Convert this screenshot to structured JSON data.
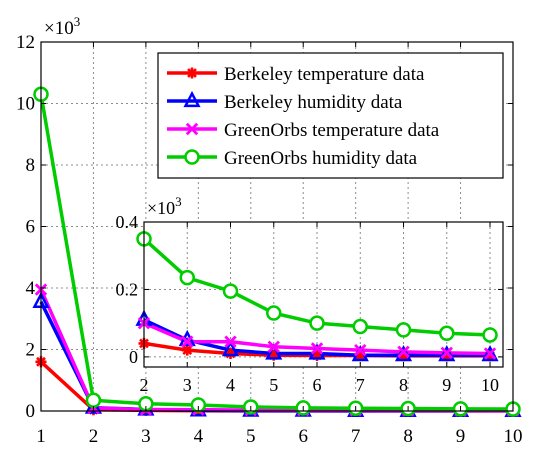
{
  "chart_data": [
    {
      "type": "line",
      "x": [
        1,
        2,
        3,
        4,
        5,
        6,
        7,
        8,
        9,
        10
      ],
      "ylim": [
        0,
        12
      ],
      "xlim": [
        1,
        10
      ],
      "y_multiplier_label": "×10",
      "y_multiplier_exp": "3",
      "x_ticks": [
        "1",
        "2",
        "3",
        "4",
        "5",
        "6",
        "7",
        "8",
        "9",
        "10"
      ],
      "y_ticks": [
        "0",
        "2",
        "4",
        "6",
        "8",
        "10",
        "12"
      ],
      "y_tick_values": [
        0,
        2,
        4,
        6,
        8,
        10,
        12
      ],
      "grid": true,
      "legend_position": "top-right",
      "series": [
        {
          "name": "Berkeley temperature data",
          "color": "#ff0000",
          "marker": "asterisk",
          "values": [
            1.6,
            0.04,
            0.02,
            0.01,
            0.005,
            0.004,
            0.004,
            0.003,
            0.003,
            0.003
          ]
        },
        {
          "name": "Berkeley humidity data",
          "color": "#0000ff",
          "marker": "triangle",
          "values": [
            3.55,
            0.11,
            0.05,
            0.02,
            0.01,
            0.01,
            0.005,
            0.005,
            0.005,
            0.005
          ]
        },
        {
          "name": "GreenOrbs temperature data",
          "color": "#ff00ff",
          "marker": "x",
          "values": [
            3.95,
            0.1,
            0.045,
            0.045,
            0.03,
            0.025,
            0.02,
            0.015,
            0.012,
            0.01
          ]
        },
        {
          "name": "GreenOrbs humidity data",
          "color": "#00cc00",
          "marker": "circle",
          "values": [
            10.3,
            0.35,
            0.235,
            0.195,
            0.13,
            0.1,
            0.09,
            0.08,
            0.07,
            0.065
          ]
        }
      ]
    },
    {
      "type": "line",
      "x": [
        2,
        3,
        4,
        5,
        6,
        7,
        8,
        9,
        10
      ],
      "xlim": [
        2,
        10.3
      ],
      "ylim": [
        -0.03,
        0.4
      ],
      "y_multiplier_label": "×10",
      "y_multiplier_exp": "3",
      "x_ticks": [
        "2",
        "3",
        "4",
        "5",
        "6",
        "7",
        "8",
        "9",
        "10"
      ],
      "y_ticks": [
        "0",
        "0.2",
        "0.4"
      ],
      "y_tick_values": [
        0,
        0.2,
        0.4
      ],
      "grid": true,
      "series": [
        {
          "color": "#ff0000",
          "marker": "asterisk",
          "values": [
            0.04,
            0.02,
            0.01,
            0.005,
            0.004,
            0.004,
            0.003,
            0.003,
            0.003
          ]
        },
        {
          "color": "#0000ff",
          "marker": "triangle",
          "values": [
            0.11,
            0.05,
            0.02,
            0.01,
            0.01,
            0.005,
            0.005,
            0.005,
            0.005
          ]
        },
        {
          "color": "#ff00ff",
          "marker": "x",
          "values": [
            0.1,
            0.045,
            0.045,
            0.03,
            0.025,
            0.02,
            0.015,
            0.012,
            0.01
          ]
        },
        {
          "color": "#00cc00",
          "marker": "circle",
          "values": [
            0.35,
            0.235,
            0.195,
            0.13,
            0.1,
            0.09,
            0.08,
            0.07,
            0.065
          ]
        }
      ]
    }
  ]
}
